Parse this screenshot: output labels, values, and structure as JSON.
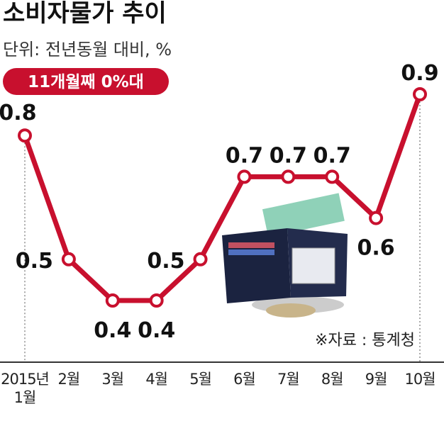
{
  "chart_data": {
    "type": "line",
    "title": "소비자물가 추이",
    "subtitle": "단위: 전년동월 대비, %",
    "annotation": "11개월째 0%대",
    "source": "※자료 : 통계청",
    "categories": [
      "2015년\n1월",
      "2월",
      "3월",
      "4월",
      "5월",
      "6월",
      "7월",
      "8월",
      "9월",
      "10월"
    ],
    "values": [
      0.8,
      0.5,
      0.4,
      0.4,
      0.5,
      0.7,
      0.7,
      0.7,
      0.6,
      0.9
    ],
    "color": "#c8102e"
  }
}
